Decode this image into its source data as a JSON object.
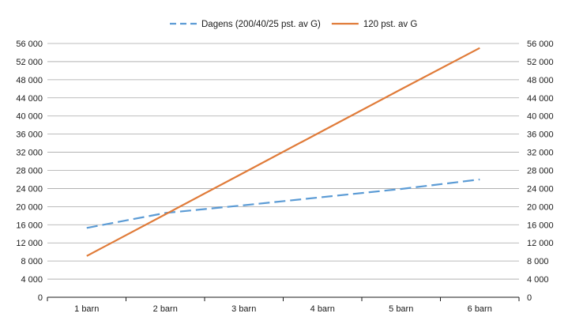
{
  "chart_data": {
    "type": "line",
    "categories": [
      "1 barn",
      "2 barn",
      "3 barn",
      "4 barn",
      "5 barn",
      "6 barn"
    ],
    "series": [
      {
        "name": "Dagens (200/40/25 pst. av G)",
        "values": [
          15300,
          18600,
          20300,
          22100,
          23900,
          26000
        ],
        "color": "#5b9bd5",
        "dash": "dashed"
      },
      {
        "name": "120 pst. av G",
        "values": [
          9100,
          18300,
          27500,
          36700,
          45900,
          55000
        ],
        "color": "#e07b39",
        "dash": "solid"
      }
    ],
    "ylim": [
      0,
      56000
    ],
    "yticks": [
      0,
      4000,
      8000,
      12000,
      16000,
      20000,
      24000,
      28000,
      32000,
      36000,
      40000,
      44000,
      48000,
      52000,
      56000
    ],
    "ytick_labels": [
      "0",
      "4 000",
      "8 000",
      "12 000",
      "16 000",
      "20 000",
      "24 000",
      "28 000",
      "32 000",
      "36 000",
      "40 000",
      "44 000",
      "48 000",
      "52 000",
      "56 000"
    ],
    "secondary_y_axis": true,
    "grid": true,
    "legend": "top-center",
    "title": "",
    "xlabel": "",
    "ylabel": ""
  }
}
